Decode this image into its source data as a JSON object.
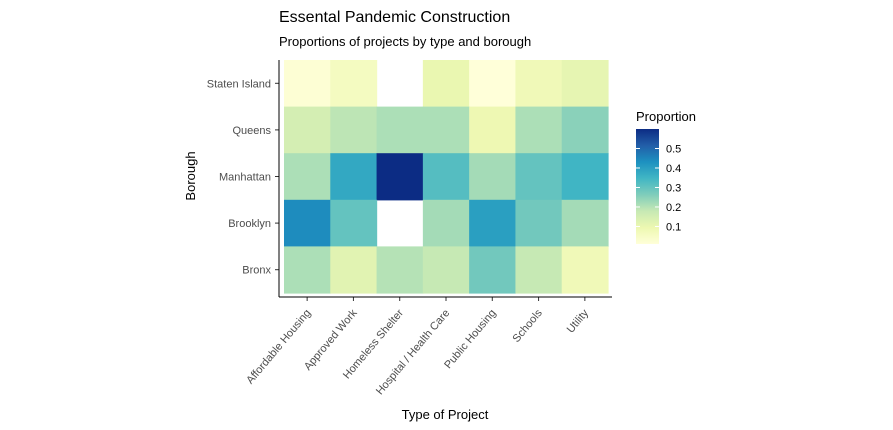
{
  "chart_data": {
    "type": "heatmap",
    "title": "Essental Pandemic Construction",
    "subtitle": "Proportions of projects by type and borough",
    "xlabel": "Type of Project",
    "ylabel": "Borough",
    "x_categories": [
      "Affordable Housing",
      "Approved Work",
      "Homeless Shelter",
      "Hospital / Health Care",
      "Public Housing",
      "Schools",
      "Utility"
    ],
    "y_categories": [
      "Staten Island",
      "Queens",
      "Manhattan",
      "Brooklyn",
      "Bronx"
    ],
    "values": [
      [
        0.02,
        0.06,
        null,
        0.1,
        0.01,
        0.08,
        0.11
      ],
      [
        0.15,
        0.19,
        0.21,
        0.21,
        0.09,
        0.21,
        0.25
      ],
      [
        0.21,
        0.38,
        0.6,
        0.32,
        0.22,
        0.3,
        0.35
      ],
      [
        0.44,
        0.3,
        null,
        0.22,
        0.4,
        0.28,
        0.22
      ],
      [
        0.21,
        0.12,
        0.2,
        0.18,
        0.28,
        0.18,
        0.08
      ]
    ],
    "legend": {
      "title": "Proportion",
      "ticks": [
        "0.1",
        "0.2",
        "0.3",
        "0.4",
        "0.5"
      ],
      "tick_values": [
        0.1,
        0.2,
        0.3,
        0.4,
        0.5
      ],
      "range": [
        0.01,
        0.6
      ]
    },
    "color_scale": [
      "#ffffd9",
      "#edf8b1",
      "#c7e9b4",
      "#7fcdbb",
      "#41b6c4",
      "#1d91c0",
      "#225ea8",
      "#0c2c84"
    ],
    "grid": false,
    "legend_position": "right"
  }
}
